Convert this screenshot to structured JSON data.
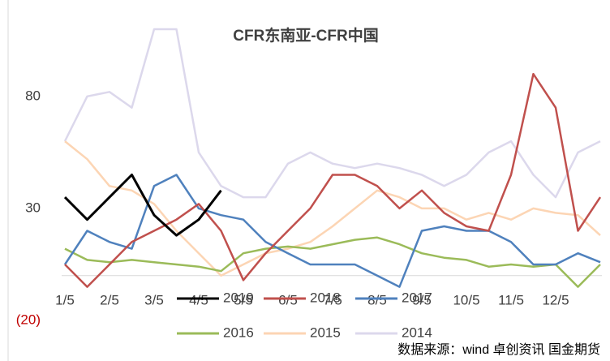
{
  "chart_data": {
    "type": "line",
    "title": "CFR东南亚-CFR中国",
    "categories": [
      "1/5",
      null,
      "2/5",
      null,
      "3/5",
      null,
      "4/5",
      null,
      "5/5",
      null,
      "6/5",
      null,
      "7/5",
      null,
      "8/5",
      null,
      "9/5",
      null,
      "10/5",
      null,
      "11/5",
      null,
      "12/5",
      null,
      null
    ],
    "series": [
      {
        "name": "2019",
        "color": "#000000",
        "values": [
          35,
          25,
          35,
          45,
          27,
          18,
          25,
          38,
          null,
          null,
          null,
          null,
          null,
          null,
          null,
          null,
          null,
          null,
          null,
          null,
          null,
          null,
          null,
          null,
          null
        ]
      },
      {
        "name": "2018",
        "color": "#c0504d",
        "values": [
          5,
          -5,
          5,
          15,
          20,
          25,
          32,
          20,
          -2,
          10,
          20,
          30,
          45,
          45,
          40,
          30,
          38,
          28,
          22,
          20,
          45,
          90,
          75,
          20,
          35
        ]
      },
      {
        "name": "2017",
        "color": "#4f81bd",
        "values": [
          5,
          20,
          15,
          12,
          40,
          45,
          30,
          27,
          25,
          15,
          10,
          5,
          5,
          5,
          0,
          -5,
          20,
          22,
          20,
          20,
          15,
          5,
          5,
          10,
          6
        ]
      },
      {
        "name": "2016",
        "color": "#9bbb59",
        "values": [
          12,
          7,
          6,
          7,
          6,
          5,
          4,
          2,
          10,
          12,
          13,
          12,
          14,
          16,
          17,
          14,
          10,
          8,
          7,
          4,
          5,
          4,
          5,
          -5,
          5
        ]
      },
      {
        "name": "2015",
        "color": "#fcd5b4",
        "values": [
          60,
          52,
          40,
          38,
          32,
          20,
          10,
          0,
          5,
          10,
          12,
          15,
          22,
          30,
          38,
          35,
          30,
          30,
          25,
          28,
          25,
          30,
          28,
          27,
          18
        ]
      },
      {
        "name": "2014",
        "color": "#dcd8ec",
        "values": [
          60,
          80,
          82,
          75,
          110,
          110,
          55,
          40,
          35,
          35,
          50,
          55,
          50,
          48,
          50,
          48,
          45,
          40,
          45,
          55,
          60,
          45,
          35,
          55,
          60
        ]
      }
    ],
    "ylim": [
      -20,
      110
    ],
    "yticks": [
      {
        "value": -20,
        "label": "(20)"
      },
      30,
      80
    ],
    "source": "数据来源：wind 卓创资讯 国金期货"
  }
}
